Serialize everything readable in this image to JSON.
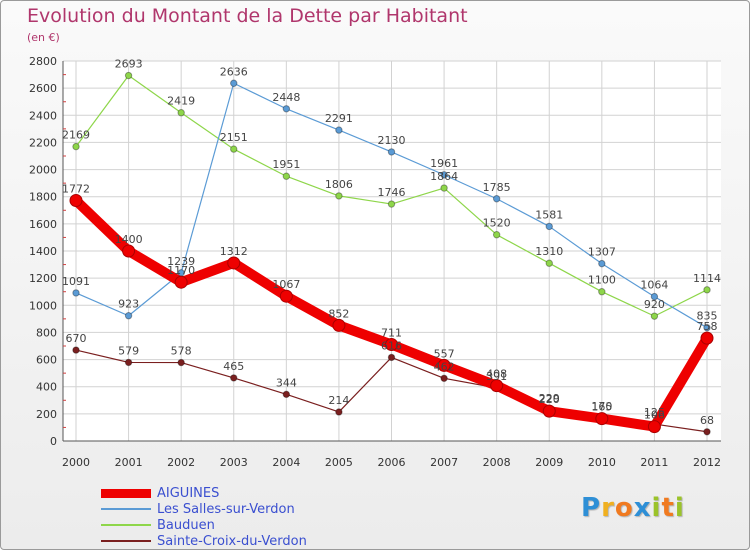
{
  "header": {
    "title": "Evolution du Montant de la Dette par Habitant",
    "subtitle": "(en €)"
  },
  "logo": {
    "letters": [
      "P",
      "r",
      "o",
      "x",
      "i",
      "t",
      "i"
    ],
    "colors": [
      "#2e8fd6",
      "#f0b020",
      "#f07a20",
      "#2e8fd6",
      "#9bc32a",
      "#f07a20",
      "#9bc32a"
    ]
  },
  "chart_data": {
    "type": "line",
    "title": "Evolution du Montant de la Dette par Habitant",
    "ylabel": "(en €)",
    "xlabel": "",
    "x": [
      "2000",
      "2001",
      "2002",
      "2003",
      "2004",
      "2005",
      "2006",
      "2007",
      "2008",
      "2009",
      "2010",
      "2011",
      "2012"
    ],
    "ylim": [
      0,
      2800
    ],
    "yticks": [
      0,
      200,
      400,
      600,
      800,
      1000,
      1200,
      1400,
      1600,
      1800,
      2000,
      2200,
      2400,
      2600,
      2800
    ],
    "grid": true,
    "legend_position": "bottom-left",
    "series": [
      {
        "name": "AIGUINES",
        "color": "#ee0000",
        "line_weight": "thick",
        "values": [
          1772,
          1400,
          1170,
          1312,
          1067,
          852,
          711,
          557,
          408,
          220,
          165,
          106,
          758
        ],
        "labels": [
          "1772",
          "1400",
          "1170",
          "1312",
          "1067",
          "852",
          "711",
          "557",
          "408",
          "220",
          "165",
          "106",
          "758"
        ]
      },
      {
        "name": "Les Salles-sur-Verdon",
        "color": "#5b9bd5",
        "line_weight": "thin",
        "values": [
          1091,
          923,
          1239,
          2636,
          2448,
          2291,
          2130,
          1961,
          1785,
          1581,
          1307,
          1064,
          835
        ],
        "labels": [
          "1091",
          "923",
          "1239",
          "2636",
          "2448",
          "2291",
          "2130",
          "1961",
          "1785",
          "1581",
          "1307",
          "1064",
          "835"
        ]
      },
      {
        "name": "Bauduen",
        "color": "#8ed64a",
        "line_weight": "thin",
        "values": [
          2169,
          2693,
          2419,
          2151,
          1951,
          1806,
          1746,
          1864,
          1520,
          1310,
          1100,
          920,
          1114
        ],
        "labels": [
          "2169",
          "2693",
          "2419",
          "2151",
          "1951",
          "1806",
          "1746",
          "1864",
          "1520",
          "1310",
          "1100",
          "920",
          "1114"
        ]
      },
      {
        "name": "Sainte-Croix-du-Verdon",
        "color": "#7a1f1f",
        "line_weight": "thin",
        "values": [
          670,
          579,
          578,
          465,
          344,
          214,
          616,
          462,
          391,
          229,
          170,
          125,
          68
        ],
        "labels": [
          "670",
          "579",
          "578",
          "465",
          "344",
          "214",
          "616",
          "462",
          "391",
          "229",
          "170",
          "125",
          "68"
        ]
      }
    ]
  }
}
